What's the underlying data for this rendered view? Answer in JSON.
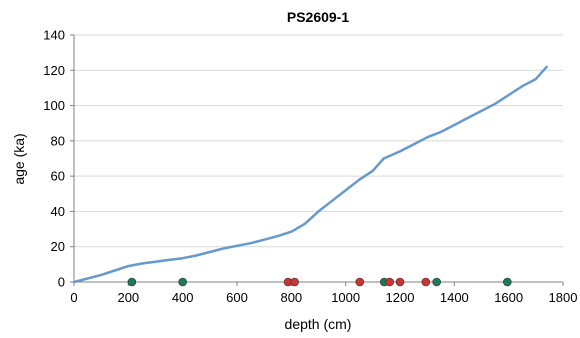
{
  "chart_data": {
    "type": "line",
    "title": "PS2609-1",
    "xlabel": "depth (cm)",
    "ylabel": "age (ka)",
    "xlim": [
      0,
      1800
    ],
    "ylim": [
      0,
      140
    ],
    "x_ticks": [
      0,
      200,
      400,
      600,
      800,
      1000,
      1200,
      1400,
      1600,
      1800
    ],
    "y_ticks": [
      0,
      20,
      40,
      60,
      80,
      100,
      120,
      140
    ],
    "grid": "horizontal",
    "legend": "none",
    "series": [
      {
        "color": "#6699cc",
        "points": [
          [
            0,
            0
          ],
          [
            50,
            2
          ],
          [
            100,
            4
          ],
          [
            150,
            6.5
          ],
          [
            200,
            9
          ],
          [
            250,
            10.5
          ],
          [
            300,
            11.5
          ],
          [
            350,
            12.5
          ],
          [
            400,
            13.5
          ],
          [
            450,
            15
          ],
          [
            500,
            17
          ],
          [
            550,
            19
          ],
          [
            600,
            20.5
          ],
          [
            650,
            22
          ],
          [
            700,
            24
          ],
          [
            750,
            26
          ],
          [
            800,
            28.5
          ],
          [
            850,
            33
          ],
          [
            900,
            40
          ],
          [
            950,
            46
          ],
          [
            1000,
            52
          ],
          [
            1050,
            58
          ],
          [
            1100,
            63
          ],
          [
            1140,
            70
          ],
          [
            1200,
            74
          ],
          [
            1250,
            78
          ],
          [
            1300,
            82
          ],
          [
            1350,
            85
          ],
          [
            1400,
            89
          ],
          [
            1450,
            93
          ],
          [
            1500,
            97
          ],
          [
            1550,
            101
          ],
          [
            1600,
            106
          ],
          [
            1650,
            111
          ],
          [
            1700,
            115
          ],
          [
            1740,
            122
          ]
        ]
      }
    ],
    "markers": [
      {
        "depth": 213,
        "color": "#1a7a5a"
      },
      {
        "depth": 400,
        "color": "#1a7a5a"
      },
      {
        "depth": 788,
        "color": "#cc3333"
      },
      {
        "depth": 812,
        "color": "#cc3333"
      },
      {
        "depth": 1052,
        "color": "#cc3333"
      },
      {
        "depth": 1142,
        "color": "#1a7a5a"
      },
      {
        "depth": 1162,
        "color": "#cc3333"
      },
      {
        "depth": 1200,
        "color": "#cc3333"
      },
      {
        "depth": 1295,
        "color": "#cc3333"
      },
      {
        "depth": 1335,
        "color": "#1a7a5a"
      },
      {
        "depth": 1595,
        "color": "#1a7a5a"
      }
    ]
  }
}
